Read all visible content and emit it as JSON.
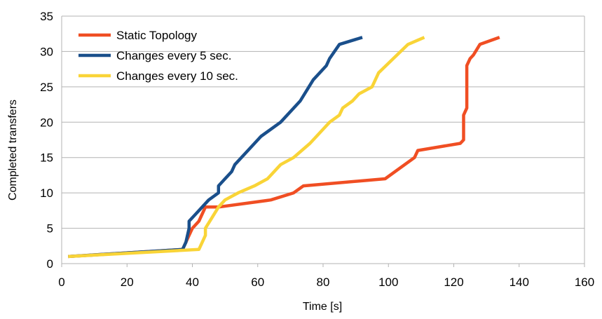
{
  "chart_data": {
    "type": "line",
    "title": "",
    "xlabel": "Time [s]",
    "ylabel": "Completed transfers",
    "xlim": [
      0,
      160
    ],
    "ylim": [
      0,
      35
    ],
    "x_ticks": [
      0,
      20,
      40,
      60,
      80,
      100,
      120,
      140,
      160
    ],
    "y_ticks": [
      0,
      5,
      10,
      15,
      20,
      25,
      30,
      35
    ],
    "grid": "horizontal",
    "legend_position": "top-left",
    "series": [
      {
        "name": "Static Topology",
        "color": "#f04e23",
        "points": [
          [
            2,
            1
          ],
          [
            37,
            2
          ],
          [
            39,
            4
          ],
          [
            40,
            5
          ],
          [
            41,
            5.5
          ],
          [
            42,
            6
          ],
          [
            44,
            8
          ],
          [
            48,
            8
          ],
          [
            64,
            9
          ],
          [
            71,
            10
          ],
          [
            74,
            11
          ],
          [
            99,
            12
          ],
          [
            108,
            15
          ],
          [
            109,
            16
          ],
          [
            122,
            17
          ],
          [
            123,
            17.5
          ],
          [
            123,
            21
          ],
          [
            124,
            22
          ],
          [
            124,
            28
          ],
          [
            125,
            29
          ],
          [
            126,
            29.5
          ],
          [
            128,
            31
          ],
          [
            134,
            32
          ]
        ]
      },
      {
        "name": "Changes every 5 sec.",
        "color": "#1a4f8b",
        "points": [
          [
            2,
            1
          ],
          [
            37,
            2
          ],
          [
            38,
            3
          ],
          [
            39,
            5
          ],
          [
            39,
            6
          ],
          [
            41,
            7
          ],
          [
            43,
            8
          ],
          [
            45,
            9
          ],
          [
            48,
            10
          ],
          [
            48,
            11
          ],
          [
            50,
            12
          ],
          [
            52,
            13
          ],
          [
            53,
            14
          ],
          [
            57,
            16
          ],
          [
            61,
            18
          ],
          [
            67,
            20
          ],
          [
            73,
            23
          ],
          [
            77,
            26
          ],
          [
            81,
            28
          ],
          [
            82,
            29
          ],
          [
            85,
            31
          ],
          [
            92,
            32
          ]
        ]
      },
      {
        "name": "Changes every 10 sec.",
        "color": "#f9d437",
        "points": [
          [
            2,
            1
          ],
          [
            42,
            2
          ],
          [
            43,
            3
          ],
          [
            44,
            4
          ],
          [
            44,
            5
          ],
          [
            46,
            6.5
          ],
          [
            48,
            8
          ],
          [
            50,
            9
          ],
          [
            54,
            10
          ],
          [
            59,
            11
          ],
          [
            63,
            12
          ],
          [
            67,
            14
          ],
          [
            71,
            15
          ],
          [
            76,
            17
          ],
          [
            80,
            19
          ],
          [
            82,
            20
          ],
          [
            85,
            21
          ],
          [
            86,
            22
          ],
          [
            89,
            23
          ],
          [
            91,
            24
          ],
          [
            95,
            25
          ],
          [
            97,
            27
          ],
          [
            106,
            31
          ],
          [
            111,
            32
          ]
        ]
      }
    ]
  }
}
